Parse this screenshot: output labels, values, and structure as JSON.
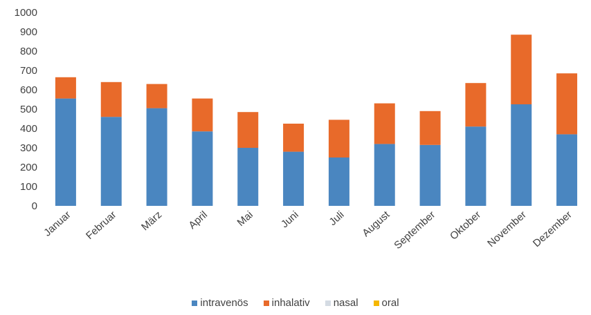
{
  "chart_data": {
    "type": "bar",
    "stacked": true,
    "categories": [
      "Januar",
      "Februar",
      "März",
      "April",
      "Mai",
      "Juni",
      "Juli",
      "August",
      "September",
      "Oktober",
      "November",
      "Dezember"
    ],
    "series": [
      {
        "name": "intravenös",
        "color": "#4a86c0",
        "values": [
          555,
          460,
          505,
          385,
          300,
          280,
          250,
          320,
          315,
          410,
          525,
          370
        ]
      },
      {
        "name": "inhalativ",
        "color": "#e86a2a",
        "values": [
          110,
          180,
          125,
          170,
          185,
          145,
          195,
          210,
          175,
          225,
          360,
          315
        ]
      },
      {
        "name": "nasal",
        "color": "#d4dbe3",
        "values": [
          0,
          0,
          0,
          0,
          0,
          0,
          0,
          0,
          0,
          0,
          0,
          0
        ]
      },
      {
        "name": "oral",
        "color": "#f5b700",
        "values": [
          0,
          0,
          0,
          0,
          0,
          0,
          0,
          0,
          0,
          0,
          0,
          0
        ]
      }
    ],
    "ylim": [
      0,
      1000
    ],
    "yticks": [
      0,
      100,
      200,
      300,
      400,
      500,
      600,
      700,
      800,
      900,
      1000
    ],
    "legend_position": "bottom",
    "grid": false
  }
}
